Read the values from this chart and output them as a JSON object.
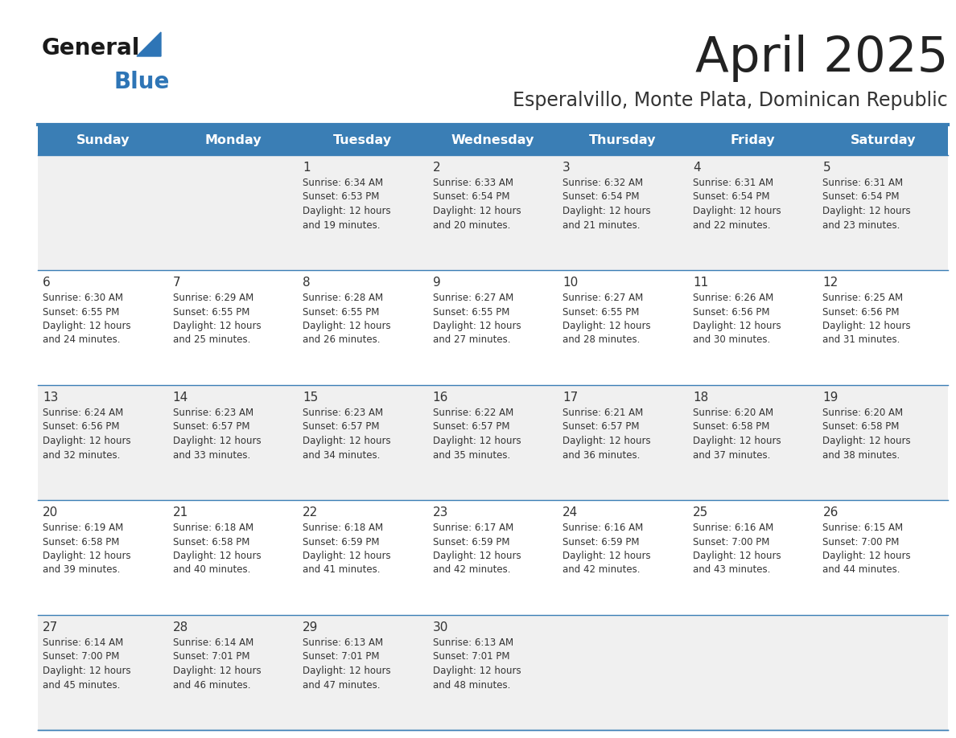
{
  "title": "April 2025",
  "subtitle": "Esperalvillo, Monte Plata, Dominican Republic",
  "days_of_week": [
    "Sunday",
    "Monday",
    "Tuesday",
    "Wednesday",
    "Thursday",
    "Friday",
    "Saturday"
  ],
  "header_bg": "#3A7EB5",
  "header_text": "#FFFFFF",
  "cell_bg_odd": "#F0F0F0",
  "cell_bg_even": "#FFFFFF",
  "line_color": "#3A7EB5",
  "text_color": "#333333",
  "title_color": "#222222",
  "subtitle_color": "#333333",
  "logo_general_color": "#1a1a1a",
  "logo_blue_color": "#2E75B6",
  "fig_width": 11.88,
  "fig_height": 9.18,
  "dpi": 100,
  "calendar": [
    [
      {
        "day": "",
        "info": ""
      },
      {
        "day": "",
        "info": ""
      },
      {
        "day": "1",
        "info": "Sunrise: 6:34 AM\nSunset: 6:53 PM\nDaylight: 12 hours\nand 19 minutes."
      },
      {
        "day": "2",
        "info": "Sunrise: 6:33 AM\nSunset: 6:54 PM\nDaylight: 12 hours\nand 20 minutes."
      },
      {
        "day": "3",
        "info": "Sunrise: 6:32 AM\nSunset: 6:54 PM\nDaylight: 12 hours\nand 21 minutes."
      },
      {
        "day": "4",
        "info": "Sunrise: 6:31 AM\nSunset: 6:54 PM\nDaylight: 12 hours\nand 22 minutes."
      },
      {
        "day": "5",
        "info": "Sunrise: 6:31 AM\nSunset: 6:54 PM\nDaylight: 12 hours\nand 23 minutes."
      }
    ],
    [
      {
        "day": "6",
        "info": "Sunrise: 6:30 AM\nSunset: 6:55 PM\nDaylight: 12 hours\nand 24 minutes."
      },
      {
        "day": "7",
        "info": "Sunrise: 6:29 AM\nSunset: 6:55 PM\nDaylight: 12 hours\nand 25 minutes."
      },
      {
        "day": "8",
        "info": "Sunrise: 6:28 AM\nSunset: 6:55 PM\nDaylight: 12 hours\nand 26 minutes."
      },
      {
        "day": "9",
        "info": "Sunrise: 6:27 AM\nSunset: 6:55 PM\nDaylight: 12 hours\nand 27 minutes."
      },
      {
        "day": "10",
        "info": "Sunrise: 6:27 AM\nSunset: 6:55 PM\nDaylight: 12 hours\nand 28 minutes."
      },
      {
        "day": "11",
        "info": "Sunrise: 6:26 AM\nSunset: 6:56 PM\nDaylight: 12 hours\nand 30 minutes."
      },
      {
        "day": "12",
        "info": "Sunrise: 6:25 AM\nSunset: 6:56 PM\nDaylight: 12 hours\nand 31 minutes."
      }
    ],
    [
      {
        "day": "13",
        "info": "Sunrise: 6:24 AM\nSunset: 6:56 PM\nDaylight: 12 hours\nand 32 minutes."
      },
      {
        "day": "14",
        "info": "Sunrise: 6:23 AM\nSunset: 6:57 PM\nDaylight: 12 hours\nand 33 minutes."
      },
      {
        "day": "15",
        "info": "Sunrise: 6:23 AM\nSunset: 6:57 PM\nDaylight: 12 hours\nand 34 minutes."
      },
      {
        "day": "16",
        "info": "Sunrise: 6:22 AM\nSunset: 6:57 PM\nDaylight: 12 hours\nand 35 minutes."
      },
      {
        "day": "17",
        "info": "Sunrise: 6:21 AM\nSunset: 6:57 PM\nDaylight: 12 hours\nand 36 minutes."
      },
      {
        "day": "18",
        "info": "Sunrise: 6:20 AM\nSunset: 6:58 PM\nDaylight: 12 hours\nand 37 minutes."
      },
      {
        "day": "19",
        "info": "Sunrise: 6:20 AM\nSunset: 6:58 PM\nDaylight: 12 hours\nand 38 minutes."
      }
    ],
    [
      {
        "day": "20",
        "info": "Sunrise: 6:19 AM\nSunset: 6:58 PM\nDaylight: 12 hours\nand 39 minutes."
      },
      {
        "day": "21",
        "info": "Sunrise: 6:18 AM\nSunset: 6:58 PM\nDaylight: 12 hours\nand 40 minutes."
      },
      {
        "day": "22",
        "info": "Sunrise: 6:18 AM\nSunset: 6:59 PM\nDaylight: 12 hours\nand 41 minutes."
      },
      {
        "day": "23",
        "info": "Sunrise: 6:17 AM\nSunset: 6:59 PM\nDaylight: 12 hours\nand 42 minutes."
      },
      {
        "day": "24",
        "info": "Sunrise: 6:16 AM\nSunset: 6:59 PM\nDaylight: 12 hours\nand 42 minutes."
      },
      {
        "day": "25",
        "info": "Sunrise: 6:16 AM\nSunset: 7:00 PM\nDaylight: 12 hours\nand 43 minutes."
      },
      {
        "day": "26",
        "info": "Sunrise: 6:15 AM\nSunset: 7:00 PM\nDaylight: 12 hours\nand 44 minutes."
      }
    ],
    [
      {
        "day": "27",
        "info": "Sunrise: 6:14 AM\nSunset: 7:00 PM\nDaylight: 12 hours\nand 45 minutes."
      },
      {
        "day": "28",
        "info": "Sunrise: 6:14 AM\nSunset: 7:01 PM\nDaylight: 12 hours\nand 46 minutes."
      },
      {
        "day": "29",
        "info": "Sunrise: 6:13 AM\nSunset: 7:01 PM\nDaylight: 12 hours\nand 47 minutes."
      },
      {
        "day": "30",
        "info": "Sunrise: 6:13 AM\nSunset: 7:01 PM\nDaylight: 12 hours\nand 48 minutes."
      },
      {
        "day": "",
        "info": ""
      },
      {
        "day": "",
        "info": ""
      },
      {
        "day": "",
        "info": ""
      }
    ]
  ]
}
